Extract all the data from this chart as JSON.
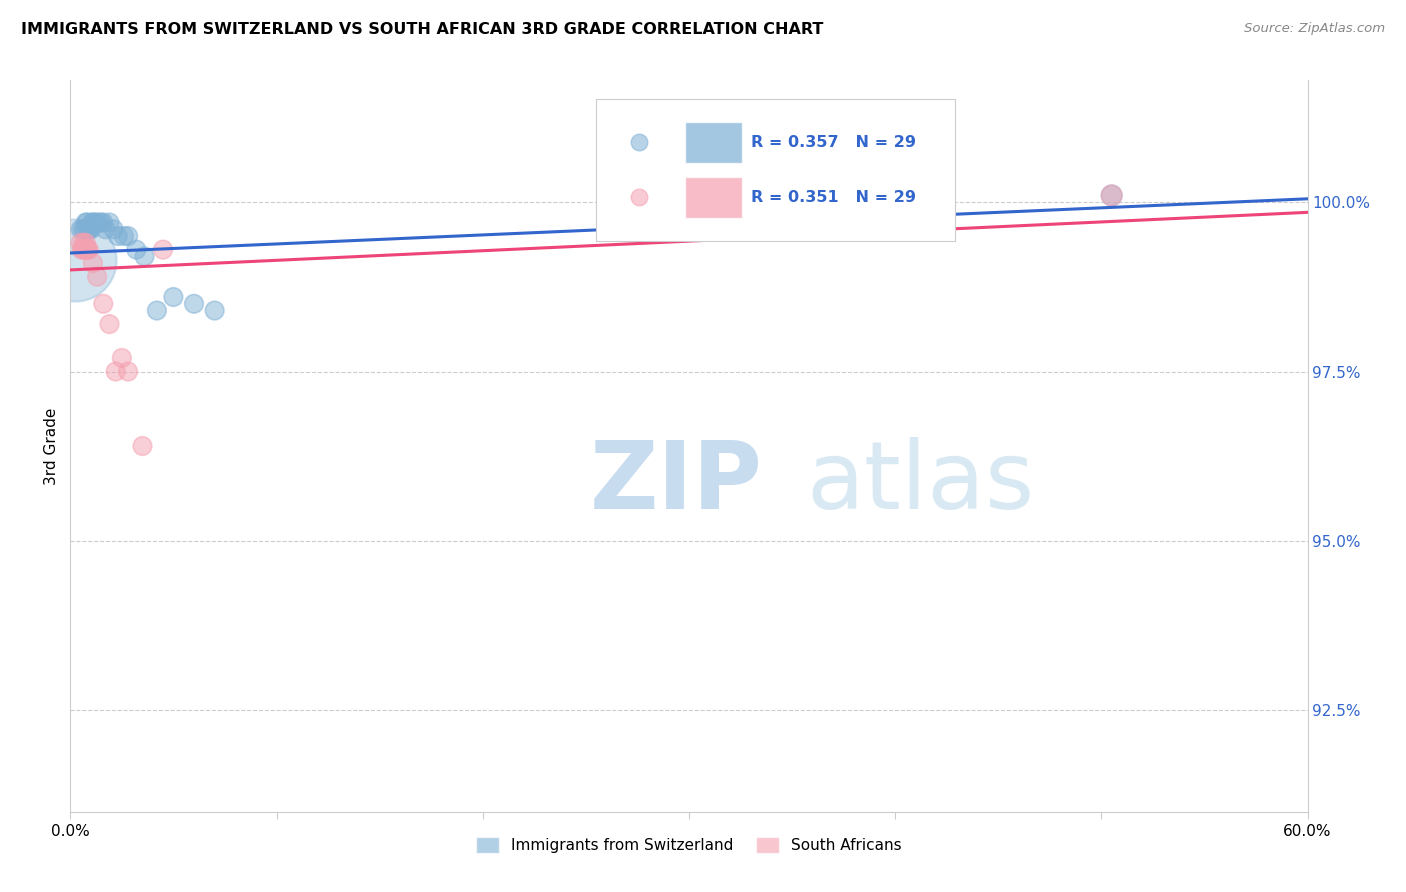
{
  "title": "IMMIGRANTS FROM SWITZERLAND VS SOUTH AFRICAN 3RD GRADE CORRELATION CHART",
  "source": "Source: ZipAtlas.com",
  "ylabel": "3rd Grade",
  "y_ticks": [
    92.5,
    95.0,
    97.5,
    100.0
  ],
  "y_tick_labels": [
    "92.5%",
    "95.0%",
    "97.5%",
    "100.0%"
  ],
  "x_range": [
    0.0,
    60.0
  ],
  "y_range": [
    91.0,
    101.8
  ],
  "swiss_R": 0.357,
  "swiss_N": 29,
  "sa_R": 0.351,
  "sa_N": 29,
  "swiss_color": "#7EB0D5",
  "sa_color": "#F4A0B0",
  "swiss_line_color": "#3366CC",
  "sa_line_color": "#EE4477",
  "legend_label_swiss": "Immigrants from Switzerland",
  "legend_label_sa": "South Africans",
  "swiss_line_y0": 99.25,
  "swiss_line_y1": 100.05,
  "sa_line_y0": 99.0,
  "sa_line_y1": 99.85,
  "swiss_x": [
    0.5,
    0.7,
    0.8,
    0.9,
    1.0,
    1.1,
    1.2,
    1.35,
    1.5,
    1.6,
    1.7,
    1.9,
    2.1,
    2.3,
    2.6,
    2.8,
    3.2,
    3.6,
    4.2,
    5.0,
    6.0,
    7.0,
    0.6,
    0.75,
    0.85,
    0.95,
    1.05,
    50.5
  ],
  "swiss_y": [
    99.6,
    99.6,
    99.7,
    99.6,
    99.6,
    99.7,
    99.7,
    99.7,
    99.7,
    99.7,
    99.6,
    99.7,
    99.6,
    99.5,
    99.5,
    99.5,
    99.3,
    99.2,
    98.4,
    98.6,
    98.5,
    98.4,
    99.6,
    99.7,
    99.6,
    99.6,
    99.7,
    100.1
  ],
  "swiss_sizes": [
    180,
    180,
    180,
    180,
    180,
    180,
    180,
    180,
    180,
    180,
    180,
    180,
    180,
    180,
    180,
    180,
    180,
    180,
    180,
    180,
    180,
    180,
    180,
    180,
    180,
    180,
    180,
    220
  ],
  "sa_x": [
    0.5,
    0.6,
    0.7,
    0.8,
    0.9,
    1.1,
    1.3,
    1.6,
    1.9,
    2.2,
    2.5,
    0.55,
    0.65,
    0.75,
    0.85,
    2.8,
    3.5,
    4.5,
    50.5
  ],
  "sa_y": [
    99.4,
    99.3,
    99.3,
    99.3,
    99.3,
    99.1,
    98.9,
    98.5,
    98.2,
    97.5,
    97.7,
    99.3,
    99.4,
    99.4,
    99.3,
    97.5,
    96.4,
    99.3,
    100.1
  ],
  "sa_sizes": [
    180,
    180,
    180,
    180,
    180,
    180,
    180,
    180,
    180,
    180,
    180,
    180,
    180,
    180,
    180,
    180,
    180,
    180,
    220
  ],
  "large_swiss_x": 0.25,
  "large_swiss_y": 99.15,
  "large_swiss_size": 3500
}
